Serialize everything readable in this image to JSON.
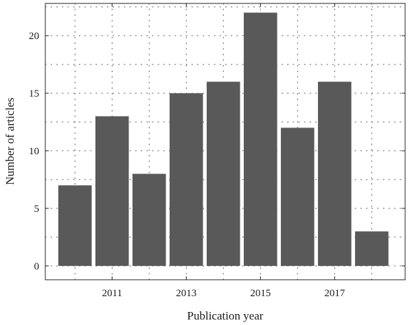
{
  "chart_data": {
    "type": "bar",
    "categories": [
      "2010",
      "2011",
      "2012",
      "2013",
      "2014",
      "2015",
      "2016",
      "2017",
      "2018"
    ],
    "values": [
      7,
      13,
      8,
      15,
      16,
      22,
      12,
      16,
      3
    ],
    "xticks": [
      "2011",
      "2013",
      "2015",
      "2017"
    ],
    "yticks": [
      0,
      5,
      10,
      15,
      20
    ],
    "xlim": [
      2009.2,
      2018.9
    ],
    "ylim": [
      -1.2,
      22.8
    ],
    "xlabel": "Publication year",
    "ylabel": "Number of articles",
    "grid": true,
    "bar_color": "#595959"
  }
}
